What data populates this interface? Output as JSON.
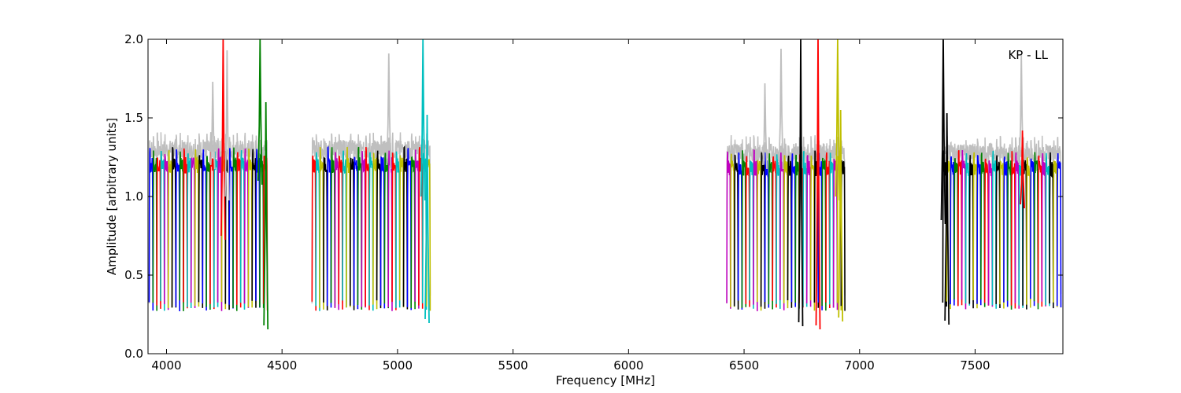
{
  "chart_data": {
    "type": "line",
    "title": "",
    "annotation": "KP - LL",
    "xlabel": "Frequency [MHz]",
    "ylabel": "Amplitude [arbitrary units]",
    "xlim": [
      3920,
      7880
    ],
    "ylim": [
      0.0,
      2.0
    ],
    "grid": false,
    "x_ticks": [
      4000,
      4500,
      5000,
      5500,
      6000,
      6500,
      7000,
      7500
    ],
    "y_ticks": [
      0.0,
      0.5,
      1.0,
      1.5,
      2.0
    ],
    "x_tick_labels": [
      "4000",
      "4500",
      "5000",
      "5500",
      "6000",
      "6500",
      "7000",
      "7500"
    ],
    "y_tick_labels": [
      "0.0",
      "0.5",
      "1.0",
      "1.5",
      "2.0"
    ],
    "colors": {
      "blue": "#0000ff",
      "green": "#008000",
      "red": "#ff0000",
      "cyan": "#00bfbf",
      "magenta": "#bf00bf",
      "yellow": "#bfbf00",
      "black": "#000000",
      "gray": "#bfbfbf"
    },
    "bands": [
      {
        "range": [
          3925,
          4440
        ],
        "channel_width": 16.5,
        "colors": [
          "blue",
          "green",
          "red",
          "cyan",
          "magenta",
          "yellow",
          "black"
        ],
        "base_level": 1.2,
        "dip_min": 0.27
      },
      {
        "range": [
          4630,
          5145
        ],
        "channel_width": 16.5,
        "colors": [
          "red",
          "cyan",
          "yellow",
          "black",
          "blue",
          "green",
          "magenta"
        ],
        "base_level": 1.2,
        "dip_min": 0.27
      },
      {
        "range": [
          6425,
          6940
        ],
        "channel_width": 16.5,
        "colors": [
          "magenta",
          "yellow",
          "black",
          "blue",
          "green",
          "red",
          "cyan"
        ],
        "base_level": 1.18,
        "dip_min": 0.27
      },
      {
        "range": [
          7360,
          7880
        ],
        "channel_width": 16.5,
        "colors": [
          "black",
          "yellow",
          "blue",
          "green",
          "red",
          "magenta",
          "cyan"
        ],
        "base_level": 1.18,
        "dip_min": 0.28
      }
    ],
    "spikes": [
      {
        "x": 4245,
        "y_from": 0.75,
        "y_to": 2.0,
        "color": "red"
      },
      {
        "x": 4262,
        "y_from": 1.0,
        "y_to": 1.93,
        "color": "gray"
      },
      {
        "x": 4200,
        "y_from": 1.2,
        "y_to": 1.73,
        "color": "gray"
      },
      {
        "x": 4405,
        "y_from": 1.1,
        "y_to": 2.0,
        "color": "green"
      },
      {
        "x": 4430,
        "y_from": 0.18,
        "y_to": 1.6,
        "color": "green"
      },
      {
        "x": 4962,
        "y_from": 1.2,
        "y_to": 1.91,
        "color": "gray"
      },
      {
        "x": 5110,
        "y_from": 1.0,
        "y_to": 2.0,
        "color": "cyan"
      },
      {
        "x": 5128,
        "y_from": 0.22,
        "y_to": 1.52,
        "color": "cyan"
      },
      {
        "x": 6590,
        "y_from": 1.2,
        "y_to": 1.72,
        "color": "gray"
      },
      {
        "x": 6660,
        "y_from": 1.2,
        "y_to": 1.94,
        "color": "gray"
      },
      {
        "x": 6745,
        "y_from": 0.2,
        "y_to": 2.0,
        "color": "black"
      },
      {
        "x": 6820,
        "y_from": 0.18,
        "y_to": 2.0,
        "color": "red"
      },
      {
        "x": 6905,
        "y_from": 1.0,
        "y_to": 2.0,
        "color": "yellow"
      },
      {
        "x": 6918,
        "y_from": 0.23,
        "y_to": 1.55,
        "color": "yellow"
      },
      {
        "x": 7362,
        "y_from": 0.85,
        "y_to": 2.0,
        "color": "black"
      },
      {
        "x": 7378,
        "y_from": 0.21,
        "y_to": 1.53,
        "color": "black"
      },
      {
        "x": 7700,
        "y_from": 1.2,
        "y_to": 1.9,
        "color": "gray"
      },
      {
        "x": 7705,
        "y_from": 0.95,
        "y_to": 1.42,
        "color": "red"
      }
    ]
  }
}
